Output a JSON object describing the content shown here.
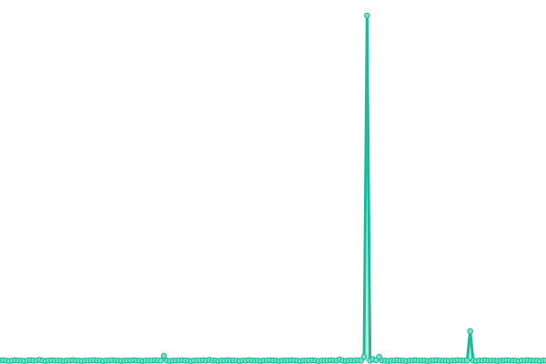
{
  "chart_data": {
    "type": "line",
    "title": "",
    "xlabel": "",
    "ylabel": "",
    "ylim": [
      0,
      100
    ],
    "grid": false,
    "legend": "none",
    "colors": {
      "line": "#1abc9c",
      "marker_fill": "#7fdcc4",
      "area": "#1abc9c"
    },
    "values": [
      0.2,
      0.3,
      0.2,
      0.1,
      0.2,
      0.3,
      0.2,
      0.2,
      0.1,
      0.2,
      0.3,
      0.2,
      0.2,
      0.4,
      0.2,
      0.1,
      0.2,
      0.3,
      0.2,
      0.2,
      0.2,
      0.1,
      0.2,
      0.2,
      0.3,
      0.2,
      0.2,
      0.1,
      0.2,
      0.2,
      0.2,
      0.3,
      0.2,
      0.2,
      0.1,
      0.2,
      0.2,
      0.3,
      0.2,
      0.2,
      0.1,
      0.2,
      0.2,
      0.2,
      0.3,
      0.2,
      0.2,
      0.1,
      0.2,
      0.2,
      0.2,
      0.3,
      0.2,
      0.2,
      1.6,
      0.2,
      0.1,
      0.2,
      0.2,
      0.2,
      0.3,
      0.2,
      0.2,
      0.1,
      0.2,
      0.2,
      0.2,
      0.3,
      0.2,
      0.4,
      0.2,
      0.2,
      0.1,
      0.2,
      0.2,
      0.3,
      0.2,
      0.2,
      0.2,
      0.1,
      0.2,
      0.2,
      0.3,
      0.2,
      0.2,
      0.2,
      0.1,
      0.2,
      0.2,
      0.3,
      0.2,
      0.2,
      0.1,
      0.2,
      0.2,
      0.2,
      0.3,
      0.2,
      0.2,
      0.1,
      0.2,
      0.2,
      0.2,
      0.3,
      0.2,
      0.1,
      0.2,
      0.2,
      0.2,
      0.3,
      0.2,
      0.2,
      0.5,
      0.2,
      0.1,
      0.2,
      0.2,
      0.2,
      0.3,
      0.2,
      1.3,
      100,
      0.2,
      0.6,
      0.3,
      1.3,
      0.2,
      0.2,
      0.1,
      0.2,
      0.2,
      0.3,
      0.2,
      0.2,
      0.1,
      0.2,
      0.2,
      0.3,
      0.2,
      0.2,
      0.2,
      0.1,
      0.2,
      0.2,
      0.3,
      0.2,
      0.2,
      0.2,
      0.1,
      0.2,
      0.2,
      0.3,
      0.2,
      0.2,
      0.2,
      8.7,
      0.2,
      0.1,
      0.2,
      0.2,
      0.3,
      0.2,
      0.2,
      0.2,
      0.1,
      0.2,
      0.2,
      0.3,
      0.2,
      0.2,
      0.2,
      0.1,
      0.2,
      0.2,
      0.3,
      0.2,
      0.2,
      0.2,
      0.1,
      0.2,
      0.2
    ]
  }
}
